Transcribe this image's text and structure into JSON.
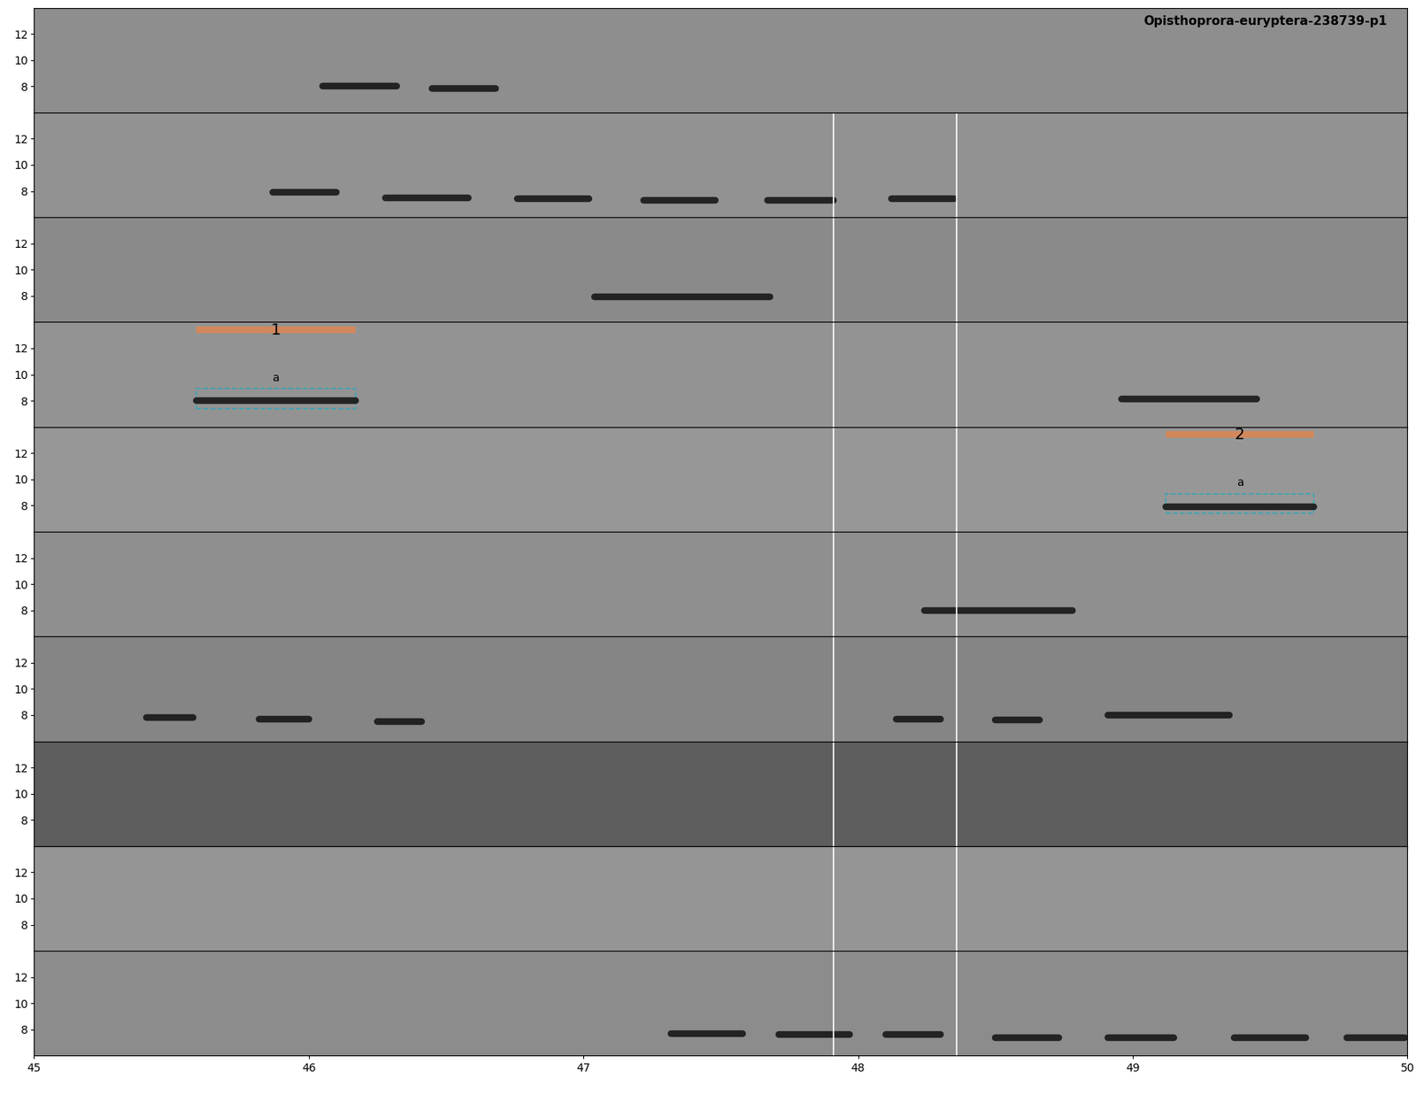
{
  "chart_data": {
    "type": "spectrogram",
    "title": "Opisthoprora-euryptera-238739-p1",
    "xlim": [
      45,
      50
    ],
    "xticks": [
      45,
      46,
      47,
      48,
      49,
      50
    ],
    "ylim": [
      6,
      14
    ],
    "yticks": [
      8,
      10,
      12
    ],
    "call_color": "#111111",
    "panels": [
      {
        "color": "#8e8e8e",
        "calls": [
          [
            46.05,
            46.32,
            8.0
          ],
          [
            46.45,
            46.68,
            7.8
          ]
        ]
      },
      {
        "color": "#929292",
        "calls": [
          [
            45.87,
            46.1,
            7.9
          ],
          [
            46.28,
            46.58,
            7.5
          ],
          [
            46.76,
            47.02,
            7.4
          ],
          [
            47.22,
            47.48,
            7.3
          ],
          [
            47.67,
            47.91,
            7.3
          ],
          [
            48.12,
            48.35,
            7.4
          ]
        ]
      },
      {
        "color": "#8a8a8a",
        "calls": [
          [
            47.04,
            47.68,
            7.9
          ]
        ]
      },
      {
        "color": "#939393",
        "calls": [
          [
            45.59,
            46.17,
            8.0
          ],
          [
            48.96,
            49.45,
            8.1
          ]
        ]
      },
      {
        "color": "#979797",
        "calls": [
          [
            49.12,
            49.66,
            7.9
          ]
        ]
      },
      {
        "color": "#8f8f8f",
        "calls": [
          [
            48.24,
            48.78,
            8.0
          ]
        ]
      },
      {
        "color": "#858585",
        "calls": [
          [
            45.41,
            45.58,
            7.8
          ],
          [
            45.82,
            46.0,
            7.7
          ],
          [
            46.25,
            46.41,
            7.5
          ],
          [
            48.14,
            48.3,
            7.7
          ],
          [
            48.5,
            48.66,
            7.6
          ],
          [
            48.91,
            49.35,
            8.0
          ]
        ]
      },
      {
        "color": "#5e5e5e",
        "calls": []
      },
      {
        "color": "#959595",
        "calls": []
      },
      {
        "color": "#8c8c8c",
        "calls": [
          [
            47.32,
            47.58,
            7.7
          ],
          [
            47.71,
            47.97,
            7.6
          ],
          [
            48.1,
            48.3,
            7.6
          ],
          [
            48.5,
            48.73,
            7.4
          ],
          [
            48.91,
            49.15,
            7.4
          ],
          [
            49.37,
            49.63,
            7.4
          ],
          [
            49.78,
            49.99,
            7.4
          ]
        ]
      }
    ],
    "markers": [
      47.91,
      48.36
    ],
    "marker_panels": [
      2,
      3,
      4,
      5,
      6,
      7,
      8,
      9,
      10
    ],
    "selection_color": "#d2885a",
    "box_color": "#3aa5b5",
    "selections": [
      {
        "panel": 4,
        "label": "1",
        "box_label": "a",
        "x": [
          45.59,
          46.17
        ],
        "y": [
          7.4,
          8.9
        ],
        "bar_y": 13.4
      },
      {
        "panel": 5,
        "label": "2",
        "box_label": "a",
        "x": [
          49.12,
          49.66
        ],
        "y": [
          7.4,
          8.9
        ],
        "bar_y": 13.4
      }
    ]
  }
}
